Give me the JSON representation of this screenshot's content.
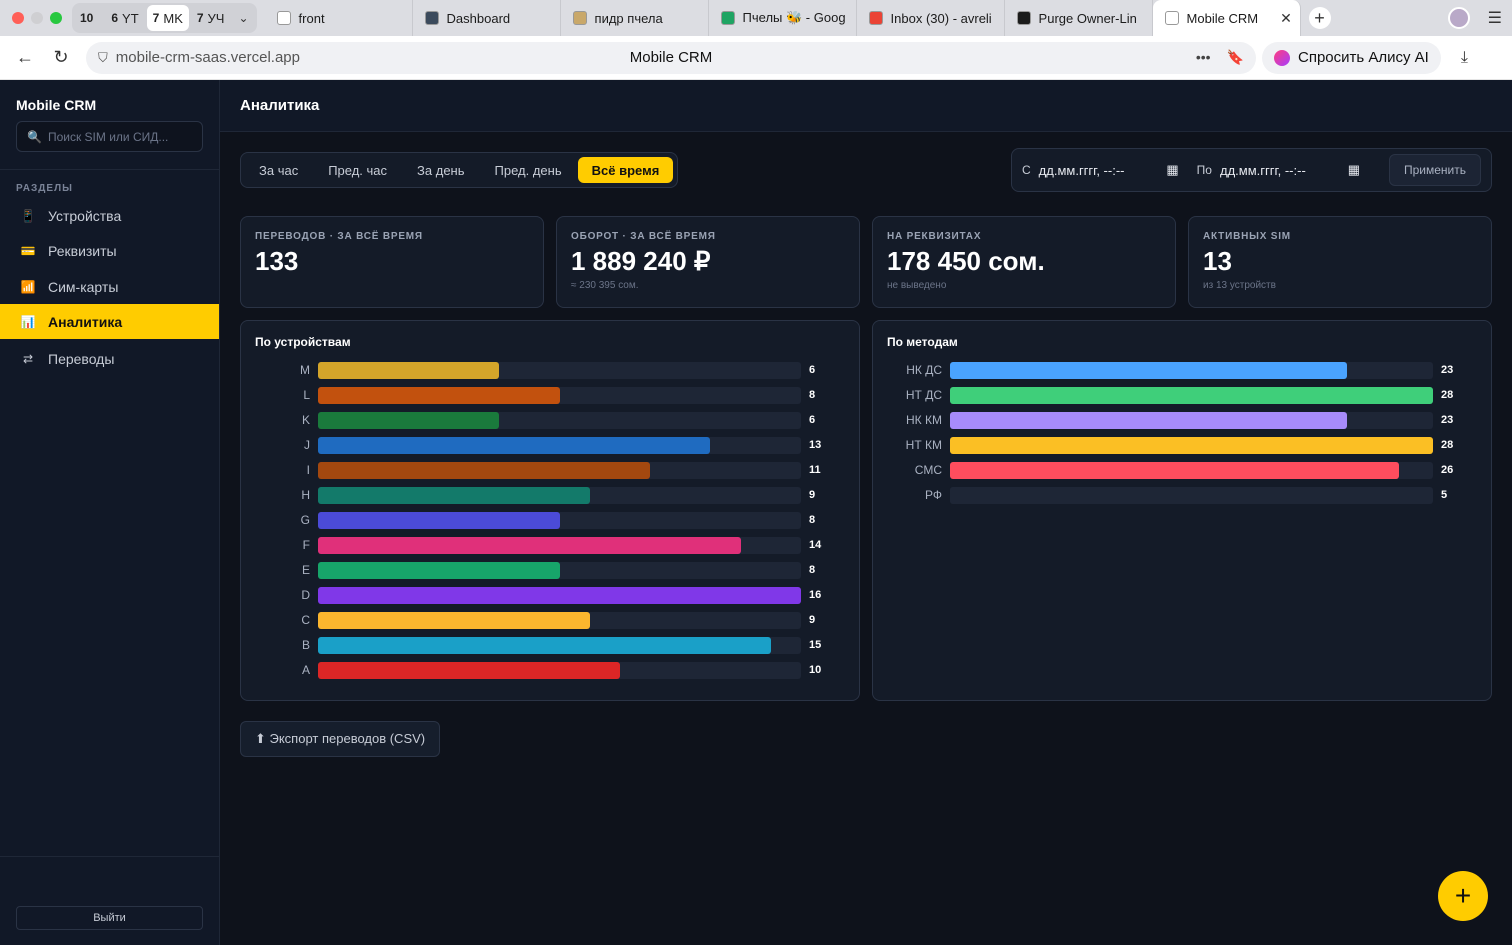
{
  "browser": {
    "group_tabs": [
      {
        "num": "10",
        "label": ""
      },
      {
        "num": "6",
        "label": "YT"
      },
      {
        "num": "7",
        "label": "MK"
      },
      {
        "num": "7",
        "label": "УЧ"
      }
    ],
    "tabs": [
      {
        "title": "front",
        "icon": "page-icon",
        "color": "#ffffff"
      },
      {
        "title": "Dashboard",
        "icon": "dashboard-icon",
        "color": "#3b4a5c"
      },
      {
        "title": "пидр пчела",
        "icon": "bee-icon",
        "color": "#c9a86a"
      },
      {
        "title": "Пчелы 🐝 - Goog",
        "icon": "sheets-icon",
        "color": "#1fa463"
      },
      {
        "title": "Inbox (30) - avreli",
        "icon": "gmail-icon",
        "color": "#ea4335"
      },
      {
        "title": "Purge Owner-Lin",
        "icon": "bolt-icon",
        "color": "#1b1b1b"
      },
      {
        "title": "Mobile CRM",
        "icon": "page-icon",
        "color": "#ffffff"
      }
    ],
    "url": "mobile-crm-saas.vercel.app",
    "page_title": "Mobile CRM",
    "alice_label": "Спросить Алису AI"
  },
  "sidebar": {
    "brand": "Mobile CRM",
    "search_placeholder": "Поиск SIM или СИД...",
    "section_title": "РАЗДЕЛЫ",
    "items": [
      {
        "label": "Устройства",
        "icon": "📱"
      },
      {
        "label": "Реквизиты",
        "icon": "💳"
      },
      {
        "label": "Сим-карты",
        "icon": "📶"
      },
      {
        "label": "Аналитика",
        "icon": "📊"
      },
      {
        "label": "Переводы",
        "icon": "⇄"
      }
    ],
    "logout": "Выйти"
  },
  "header": {
    "title": "Аналитика"
  },
  "periods": [
    "За час",
    "Пред. час",
    "За день",
    "Пред. день",
    "Всё время"
  ],
  "date_range": {
    "from_label": "С",
    "from_value": "дд.мм.гггг, --:--",
    "to_label": "По",
    "to_value": "дд.мм.гггг, --:--",
    "apply": "Применить"
  },
  "stats": [
    {
      "label": "ПЕРЕВОДОВ · ЗА ВСЁ ВРЕМЯ",
      "value": "133",
      "sub": ""
    },
    {
      "label": "ОБОРОТ · ЗА ВСЁ ВРЕМЯ",
      "value": "1 889 240 ₽",
      "sub": "≈ 230 395 сом."
    },
    {
      "label": "НА РЕКВИЗИТАХ",
      "value": "178 450 сом.",
      "sub": "не выведено"
    },
    {
      "label": "АКТИВНЫХ SIM",
      "value": "13",
      "sub": "из 13 устройств"
    }
  ],
  "devices_panel": {
    "title": "По устройствам",
    "max": 16,
    "rows": [
      {
        "label": "M",
        "value": 6,
        "color": "#d4a52a"
      },
      {
        "label": "L",
        "value": 8,
        "color": "#c2510e"
      },
      {
        "label": "K",
        "value": 6,
        "color": "#1a7a3c"
      },
      {
        "label": "J",
        "value": 13,
        "color": "#1f6bc0"
      },
      {
        "label": "I",
        "value": 11,
        "color": "#a3480f"
      },
      {
        "label": "H",
        "value": 9,
        "color": "#137a6a"
      },
      {
        "label": "G",
        "value": 8,
        "color": "#4b4bd8"
      },
      {
        "label": "F",
        "value": 14,
        "color": "#e0307a"
      },
      {
        "label": "E",
        "value": 8,
        "color": "#17a56a"
      },
      {
        "label": "D",
        "value": 16,
        "color": "#8038e8"
      },
      {
        "label": "C",
        "value": 9,
        "color": "#fbb62e"
      },
      {
        "label": "B",
        "value": 15,
        "color": "#1aa0c8"
      },
      {
        "label": "A",
        "value": 10,
        "color": "#dc2626"
      }
    ]
  },
  "methods_panel": {
    "title": "По методам",
    "max": 28,
    "rows": [
      {
        "label": "НК ДС",
        "value": 23,
        "color": "#4aa3ff"
      },
      {
        "label": "НТ ДС",
        "value": 28,
        "color": "#3fcf7a"
      },
      {
        "label": "НК КМ",
        "value": 23,
        "color": "#a78bfa"
      },
      {
        "label": "НТ КМ",
        "value": 28,
        "color": "#fbbf24"
      },
      {
        "label": "СМС",
        "value": 26,
        "color": "#ff4d5e"
      },
      {
        "label": "РФ",
        "value": 5,
        "color": "#1e2636"
      }
    ]
  },
  "export_button": "⬆ Экспорт переводов (CSV)",
  "fab_icon": "+"
}
